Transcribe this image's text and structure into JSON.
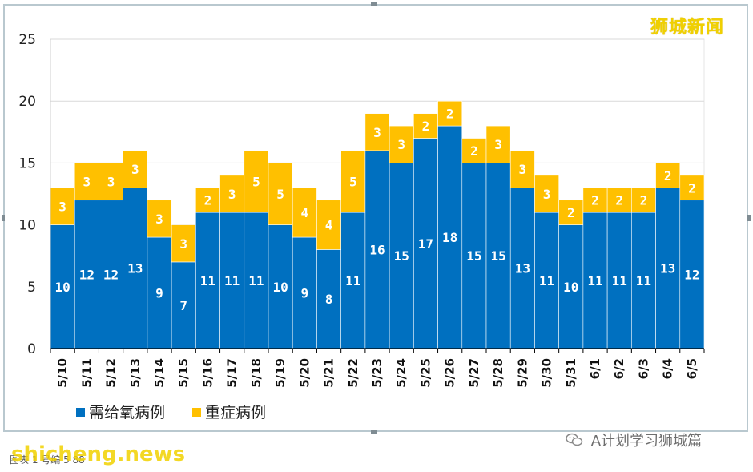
{
  "watermark_top": "狮城新闻",
  "footer": {
    "status_text": "图表 1    号编    5    88",
    "site_text": "shicheng.news",
    "wechat_text": "A计划学习狮城篇"
  },
  "colors": {
    "oxygen": "#0070c0",
    "severe": "#ffc000",
    "grid": "#d9d9d9",
    "axis": "#000000"
  },
  "chart_data": {
    "type": "bar",
    "stacked": true,
    "title": "",
    "xlabel": "",
    "ylabel": "",
    "ylim": [
      0,
      25
    ],
    "yticks": [
      0,
      5,
      10,
      15,
      20,
      25
    ],
    "grid": true,
    "legend_position": "bottom-left",
    "categories": [
      "5/10",
      "5/11",
      "5/12",
      "5/13",
      "5/14",
      "5/15",
      "5/16",
      "5/17",
      "5/18",
      "5/19",
      "5/20",
      "5/21",
      "5/22",
      "5/23",
      "5/24",
      "5/25",
      "5/26",
      "5/27",
      "5/28",
      "5/29",
      "5/30",
      "5/31",
      "6/1",
      "6/2",
      "6/3",
      "6/4",
      "6/5"
    ],
    "series": [
      {
        "name": "需给氧病例",
        "color": "#0070c0",
        "values": [
          10,
          12,
          12,
          13,
          9,
          7,
          11,
          11,
          11,
          10,
          9,
          8,
          11,
          16,
          15,
          17,
          18,
          15,
          15,
          13,
          11,
          10,
          11,
          11,
          11,
          13,
          12
        ]
      },
      {
        "name": "重症病例",
        "color": "#ffc000",
        "values": [
          3,
          3,
          3,
          3,
          3,
          3,
          2,
          3,
          5,
          5,
          4,
          4,
          5,
          3,
          3,
          2,
          2,
          2,
          3,
          3,
          3,
          2,
          2,
          2,
          2,
          2,
          2
        ]
      }
    ]
  }
}
